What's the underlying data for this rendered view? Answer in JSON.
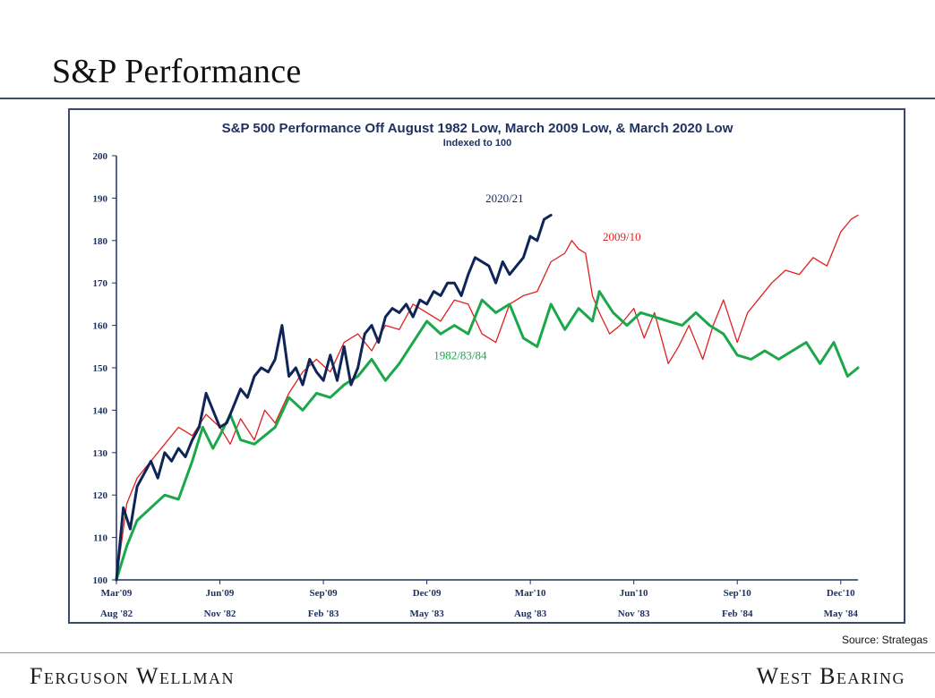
{
  "slide": {
    "title": "S&P Performance",
    "source": "Source: Strategas",
    "brand_left": "Ferguson Wellman",
    "brand_right": "West Bearing"
  },
  "chart_data": {
    "type": "line",
    "title": "S&P 500 Performance Off August 1982 Low, March 2009 Low, & March 2020 Low",
    "subtitle": "Indexed to 100",
    "xlabel": "",
    "ylabel": "",
    "ylim": [
      100,
      200
    ],
    "yticks": [
      100,
      110,
      120,
      130,
      140,
      150,
      160,
      170,
      180,
      190,
      200
    ],
    "xlim": [
      0,
      21.5
    ],
    "xticks": [
      {
        "x": 0,
        "top": "Mar'09",
        "bottom": "Aug '82"
      },
      {
        "x": 3,
        "top": "Jun'09",
        "bottom": "Nov '82"
      },
      {
        "x": 6,
        "top": "Sep'09",
        "bottom": "Feb '83"
      },
      {
        "x": 9,
        "top": "Dec'09",
        "bottom": "May '83"
      },
      {
        "x": 12,
        "top": "Mar'10",
        "bottom": "Aug '83"
      },
      {
        "x": 15,
        "top": "Jun'10",
        "bottom": "Nov '83"
      },
      {
        "x": 18,
        "top": "Sep'10",
        "bottom": "Feb '84"
      },
      {
        "x": 21,
        "top": "Dec'10",
        "bottom": "May '84"
      }
    ],
    "x_unit": "months since low",
    "grid": false,
    "series": [
      {
        "name": "2009/10",
        "color": "#e02020",
        "width": 1.3,
        "x": [
          0,
          0.3,
          0.6,
          1,
          1.4,
          1.8,
          2.2,
          2.6,
          3,
          3.3,
          3.6,
          4,
          4.3,
          4.6,
          5,
          5.4,
          5.8,
          6.2,
          6.6,
          7,
          7.4,
          7.8,
          8.2,
          8.6,
          9,
          9.4,
          9.8,
          10.2,
          10.6,
          11,
          11.4,
          11.8,
          12.2,
          12.6,
          13,
          13.2,
          13.4,
          13.6,
          13.8,
          14,
          14.3,
          14.6,
          15,
          15.3,
          15.6,
          16,
          16.3,
          16.6,
          17,
          17.3,
          17.6,
          18,
          18.3,
          18.6,
          19,
          19.4,
          19.8,
          20.2,
          20.6,
          21,
          21.3,
          21.5
        ],
        "values": [
          100,
          118,
          124,
          128,
          132,
          136,
          134,
          139,
          136,
          132,
          138,
          133,
          140,
          137,
          144,
          149,
          152,
          149,
          156,
          158,
          154,
          160,
          159,
          165,
          163,
          161,
          166,
          165,
          158,
          156,
          165,
          167,
          168,
          175,
          177,
          180,
          178,
          177,
          167,
          163,
          158,
          160,
          164,
          157,
          163,
          151,
          155,
          160,
          152,
          160,
          166,
          156,
          163,
          166,
          170,
          173,
          172,
          176,
          174,
          182,
          185,
          186
        ]
      },
      {
        "name": "1982/83/84",
        "color": "#1aa84a",
        "width": 3,
        "x": [
          0,
          0.3,
          0.6,
          1,
          1.4,
          1.8,
          2.2,
          2.5,
          2.8,
          3,
          3.3,
          3.6,
          4,
          4.3,
          4.6,
          5,
          5.4,
          5.8,
          6.2,
          6.6,
          7,
          7.4,
          7.8,
          8.2,
          8.6,
          9,
          9.4,
          9.8,
          10.2,
          10.6,
          11,
          11.4,
          11.8,
          12.2,
          12.6,
          13,
          13.4,
          13.8,
          14,
          14.4,
          14.8,
          15.2,
          15.6,
          16,
          16.4,
          16.8,
          17.2,
          17.6,
          18,
          18.4,
          18.8,
          19.2,
          19.6,
          20,
          20.4,
          20.8,
          21.2,
          21.5
        ],
        "values": [
          100,
          108,
          114,
          117,
          120,
          119,
          128,
          136,
          131,
          134,
          139,
          133,
          132,
          134,
          136,
          143,
          140,
          144,
          143,
          146,
          148,
          152,
          147,
          151,
          156,
          161,
          158,
          160,
          158,
          166,
          163,
          165,
          157,
          155,
          165,
          159,
          164,
          161,
          168,
          163,
          160,
          163,
          162,
          161,
          160,
          163,
          160,
          158,
          153,
          152,
          154,
          152,
          154,
          156,
          151,
          156,
          148,
          150
        ]
      },
      {
        "name": "2020/21",
        "color": "#0f2457",
        "width": 3,
        "x": [
          0,
          0.2,
          0.4,
          0.6,
          0.8,
          1,
          1.2,
          1.4,
          1.6,
          1.8,
          2,
          2.2,
          2.4,
          2.6,
          2.8,
          3,
          3.2,
          3.4,
          3.6,
          3.8,
          4,
          4.2,
          4.4,
          4.6,
          4.8,
          5,
          5.2,
          5.4,
          5.6,
          5.8,
          6,
          6.2,
          6.4,
          6.6,
          6.8,
          7,
          7.2,
          7.4,
          7.6,
          7.8,
          8,
          8.2,
          8.4,
          8.6,
          8.8,
          9,
          9.2,
          9.4,
          9.6,
          9.8,
          10,
          10.2,
          10.4,
          10.6,
          10.8,
          11,
          11.2,
          11.4,
          11.6,
          11.8,
          12,
          12.2,
          12.4,
          12.6
        ],
        "values": [
          100,
          117,
          112,
          122,
          125,
          128,
          124,
          130,
          128,
          131,
          129,
          133,
          136,
          144,
          140,
          136,
          137,
          141,
          145,
          143,
          148,
          150,
          149,
          152,
          160,
          148,
          150,
          146,
          152,
          149,
          147,
          153,
          147,
          155,
          146,
          150,
          158,
          160,
          156,
          162,
          164,
          163,
          165,
          162,
          166,
          165,
          168,
          167,
          170,
          170,
          167,
          172,
          176,
          175,
          174,
          170,
          175,
          172,
          174,
          176,
          181,
          180,
          185,
          186
        ]
      }
    ],
    "annotations": [
      {
        "text": "2020/21",
        "color": "#1a2b5a",
        "x": 10.7,
        "y": 189
      },
      {
        "text": "2009/10",
        "color": "#e02020",
        "x": 14.1,
        "y": 180
      },
      {
        "text": "1982/83/84",
        "color": "#1aa84a",
        "x": 9.2,
        "y": 152
      }
    ]
  }
}
